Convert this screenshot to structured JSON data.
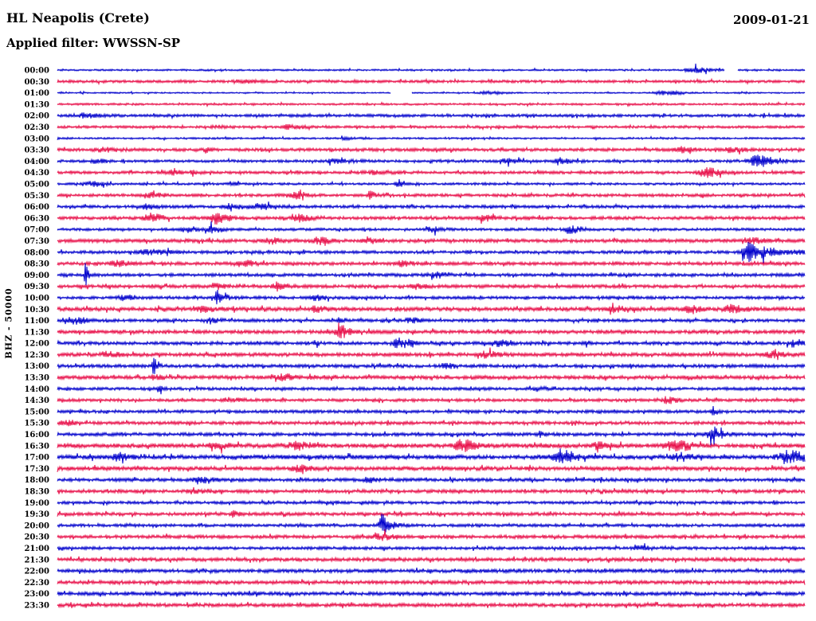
{
  "header": {
    "station": "HL Neapolis (Crete)",
    "date": "2009-01-21",
    "filter": "Applied filter: WWSSN-SP"
  },
  "y_axis_label": "BHZ - 50000",
  "colors": {
    "trace_blue": "#0000cc",
    "trace_red": "#e8104a",
    "background": "#ffffff",
    "text": "#000000"
  },
  "chart_data": {
    "type": "helicorder",
    "title": "HL Neapolis (Crete)",
    "date": "2009-01-21",
    "filter": "WWSSN-SP",
    "channel_and_scale": "BHZ - 50000",
    "minutes_per_row": 30,
    "first_row_time": "00:00",
    "last_row_time": "23:30",
    "row_count": 48,
    "legend_position": "none",
    "grid": false,
    "events_format": "[position_fraction_of_row, peak_amplitude_px, width_fraction_of_row]",
    "gaps_format": "[start_fraction, end_fraction]",
    "rows": [
      {
        "time": "00:00",
        "color": "blue",
        "noise": 1.1,
        "events": [
          [
            0.85,
            3.5,
            0.015
          ]
        ],
        "gaps": [
          [
            0.893,
            0.91
          ]
        ]
      },
      {
        "time": "00:30",
        "color": "red",
        "noise": 1.7,
        "events": [
          [
            0.245,
            1.5,
            0.02
          ]
        ],
        "gaps": []
      },
      {
        "time": "01:00",
        "color": "blue",
        "noise": 0.9,
        "events": [
          [
            0.575,
            1.8,
            0.015
          ],
          [
            0.81,
            2.2,
            0.02
          ]
        ],
        "gaps": [
          [
            0.446,
            0.474
          ]
        ]
      },
      {
        "time": "01:30",
        "color": "red",
        "noise": 1.3,
        "events": [],
        "gaps": []
      },
      {
        "time": "02:00",
        "color": "blue",
        "noise": 1.8,
        "events": [
          [
            0.035,
            2.2,
            0.015
          ]
        ],
        "gaps": []
      },
      {
        "time": "02:30",
        "color": "red",
        "noise": 1.6,
        "events": [
          [
            0.213,
            1.5,
            0.01
          ],
          [
            0.31,
            2.8,
            0.012
          ]
        ],
        "gaps": []
      },
      {
        "time": "03:00",
        "color": "blue",
        "noise": 1.2,
        "events": [
          [
            0.384,
            1.5,
            0.01
          ]
        ],
        "gaps": []
      },
      {
        "time": "03:30",
        "color": "red",
        "noise": 2.0,
        "events": [
          [
            0.06,
            2.0,
            0.015
          ],
          [
            0.198,
            3.5,
            0.004
          ],
          [
            0.835,
            2.8,
            0.012
          ],
          [
            0.9,
            2.8,
            0.012
          ]
        ],
        "gaps": []
      },
      {
        "time": "04:00",
        "color": "blue",
        "noise": 1.7,
        "events": [
          [
            0.051,
            2.2,
            0.01
          ],
          [
            0.37,
            1.8,
            0.02
          ],
          [
            0.6,
            2.5,
            0.012
          ],
          [
            0.672,
            2.5,
            0.012
          ],
          [
            0.936,
            6.5,
            0.018
          ]
        ],
        "gaps": []
      },
      {
        "time": "04:30",
        "color": "red",
        "noise": 1.8,
        "events": [
          [
            0.149,
            3.0,
            0.01
          ],
          [
            0.181,
            3.5,
            0.005
          ],
          [
            0.42,
            1.8,
            0.02
          ],
          [
            0.866,
            5.5,
            0.013
          ]
        ],
        "gaps": []
      },
      {
        "time": "05:00",
        "color": "blue",
        "noise": 1.5,
        "events": [
          [
            0.046,
            3.0,
            0.012
          ],
          [
            0.231,
            2.5,
            0.006
          ],
          [
            0.455,
            5.0,
            0.004
          ]
        ],
        "gaps": []
      },
      {
        "time": "05:30",
        "color": "red",
        "noise": 1.9,
        "events": [
          [
            0.125,
            2.5,
            0.012
          ],
          [
            0.318,
            4.0,
            0.01
          ],
          [
            0.418,
            4.5,
            0.005
          ]
        ],
        "gaps": []
      },
      {
        "time": "06:00",
        "color": "blue",
        "noise": 1.9,
        "events": [
          [
            0.12,
            2.5,
            0.01
          ],
          [
            0.23,
            3.0,
            0.014
          ],
          [
            0.27,
            3.0,
            0.012
          ]
        ],
        "gaps": []
      },
      {
        "time": "06:30",
        "color": "red",
        "noise": 2.1,
        "events": [
          [
            0.123,
            5.5,
            0.011
          ],
          [
            0.21,
            6.5,
            0.012
          ],
          [
            0.322,
            3.5,
            0.012
          ],
          [
            0.57,
            3.0,
            0.012
          ]
        ],
        "gaps": []
      },
      {
        "time": "07:00",
        "color": "blue",
        "noise": 1.7,
        "events": [
          [
            0.17,
            2.5,
            0.01
          ],
          [
            0.206,
            4.5,
            0.011
          ],
          [
            0.5,
            3.0,
            0.01
          ],
          [
            0.685,
            4.5,
            0.012
          ]
        ],
        "gaps": []
      },
      {
        "time": "07:30",
        "color": "red",
        "noise": 2.2,
        "events": [
          [
            0.285,
            3.5,
            0.011
          ],
          [
            0.348,
            4.0,
            0.011
          ],
          [
            0.416,
            3.0,
            0.01
          ],
          [
            0.925,
            3.8,
            0.012
          ]
        ],
        "gaps": []
      },
      {
        "time": "08:00",
        "color": "blue",
        "noise": 1.9,
        "events": [
          [
            0.12,
            2.5,
            0.02
          ],
          [
            0.924,
            12.0,
            0.012
          ],
          [
            0.95,
            3.5,
            0.03
          ]
        ],
        "gaps": []
      },
      {
        "time": "08:30",
        "color": "red",
        "noise": 2.1,
        "events": [
          [
            0.078,
            3.0,
            0.012
          ],
          [
            0.245,
            4.0,
            0.012
          ],
          [
            0.46,
            2.8,
            0.01
          ]
        ],
        "gaps": []
      },
      {
        "time": "09:00",
        "color": "blue",
        "noise": 2.0,
        "events": [
          [
            0.037,
            14.0,
            0.0028
          ],
          [
            0.504,
            3.5,
            0.01
          ]
        ],
        "gaps": []
      },
      {
        "time": "09:30",
        "color": "red",
        "noise": 2.1,
        "events": [
          [
            0.21,
            2.8,
            0.01
          ],
          [
            0.294,
            4.5,
            0.01
          ],
          [
            0.48,
            3.0,
            0.008
          ]
        ],
        "gaps": []
      },
      {
        "time": "10:00",
        "color": "blue",
        "noise": 1.9,
        "events": [
          [
            0.089,
            3.0,
            0.012
          ],
          [
            0.213,
            6.5,
            0.004
          ],
          [
            0.218,
            3.0,
            0.012
          ],
          [
            0.345,
            2.5,
            0.01
          ]
        ],
        "gaps": []
      },
      {
        "time": "10:30",
        "color": "red",
        "noise": 2.5,
        "events": [
          [
            0.193,
            3.0,
            0.01
          ],
          [
            0.345,
            2.8,
            0.01
          ],
          [
            0.745,
            3.2,
            0.012
          ],
          [
            0.845,
            3.2,
            0.012
          ],
          [
            0.9,
            4.0,
            0.012
          ]
        ],
        "gaps": []
      },
      {
        "time": "11:00",
        "color": "blue",
        "noise": 1.9,
        "events": [
          [
            0.02,
            4.0,
            0.013
          ],
          [
            0.203,
            3.0,
            0.01
          ],
          [
            0.375,
            2.5,
            0.008
          ],
          [
            0.472,
            3.2,
            0.01
          ]
        ],
        "gaps": []
      },
      {
        "time": "11:30",
        "color": "red",
        "noise": 2.3,
        "events": [
          [
            0.379,
            5.0,
            0.006
          ],
          [
            0.376,
            3.5,
            0.012
          ]
        ],
        "gaps": []
      },
      {
        "time": "12:00",
        "color": "blue",
        "noise": 2.1,
        "events": [
          [
            0.345,
            5.5,
            0.003
          ],
          [
            0.456,
            5.5,
            0.013
          ],
          [
            0.59,
            3.2,
            0.01
          ],
          [
            0.707,
            5.5,
            0.003
          ],
          [
            0.985,
            4.0,
            0.012
          ]
        ],
        "gaps": []
      },
      {
        "time": "12:30",
        "color": "red",
        "noise": 2.3,
        "events": [
          [
            0.065,
            3.2,
            0.012
          ],
          [
            0.57,
            3.2,
            0.014
          ],
          [
            0.955,
            3.2,
            0.012
          ]
        ],
        "gaps": []
      },
      {
        "time": "13:00",
        "color": "blue",
        "noise": 2.1,
        "events": [
          [
            0.129,
            11.0,
            0.004
          ],
          [
            0.52,
            2.8,
            0.01
          ]
        ],
        "gaps": []
      },
      {
        "time": "13:30",
        "color": "red",
        "noise": 2.3,
        "events": [
          [
            0.13,
            2.8,
            0.01
          ],
          [
            0.3,
            3.2,
            0.015
          ]
        ],
        "gaps": []
      },
      {
        "time": "14:00",
        "color": "blue",
        "noise": 1.9,
        "events": [
          [
            0.135,
            2.8,
            0.006
          ],
          [
            0.64,
            2.2,
            0.01
          ]
        ],
        "gaps": []
      },
      {
        "time": "14:30",
        "color": "red",
        "noise": 1.9,
        "events": [
          [
            0.23,
            2.5,
            0.012
          ],
          [
            0.815,
            3.5,
            0.01
          ]
        ],
        "gaps": []
      },
      {
        "time": "15:00",
        "color": "blue",
        "noise": 1.9,
        "events": [
          [
            0.877,
            6.5,
            0.0035
          ]
        ],
        "gaps": []
      },
      {
        "time": "15:30",
        "color": "red",
        "noise": 2.1,
        "events": [
          [
            0.01,
            3.0,
            0.01
          ]
        ],
        "gaps": []
      },
      {
        "time": "16:00",
        "color": "blue",
        "noise": 2.1,
        "events": [
          [
            0.646,
            3.5,
            0.004
          ],
          [
            0.875,
            6.0,
            0.012
          ],
          [
            0.877,
            8.0,
            0.003
          ]
        ],
        "gaps": []
      },
      {
        "time": "16:30",
        "color": "red",
        "noise": 2.7,
        "events": [
          [
            0.21,
            3.2,
            0.012
          ],
          [
            0.32,
            3.8,
            0.014
          ],
          [
            0.54,
            6.5,
            0.015
          ],
          [
            0.72,
            3.5,
            0.012
          ],
          [
            0.825,
            6.5,
            0.015
          ]
        ],
        "gaps": []
      },
      {
        "time": "17:00",
        "color": "blue",
        "noise": 2.7,
        "events": [
          [
            0.08,
            4.5,
            0.01
          ],
          [
            0.67,
            8.5,
            0.015
          ],
          [
            0.83,
            4.0,
            0.012
          ],
          [
            0.975,
            7.0,
            0.018
          ]
        ],
        "gaps": []
      },
      {
        "time": "17:30",
        "color": "red",
        "noise": 2.5,
        "events": [
          [
            0.32,
            3.0,
            0.012
          ]
        ],
        "gaps": []
      },
      {
        "time": "18:00",
        "color": "blue",
        "noise": 2.1,
        "events": [
          [
            0.19,
            3.0,
            0.012
          ],
          [
            0.416,
            2.5,
            0.01
          ]
        ],
        "gaps": []
      },
      {
        "time": "18:30",
        "color": "red",
        "noise": 2.1,
        "events": [
          [
            0.18,
            2.5,
            0.012
          ]
        ],
        "gaps": []
      },
      {
        "time": "19:00",
        "color": "blue",
        "noise": 1.9,
        "events": [],
        "gaps": []
      },
      {
        "time": "19:30",
        "color": "red",
        "noise": 2.1,
        "events": [
          [
            0.235,
            2.8,
            0.005
          ]
        ],
        "gaps": []
      },
      {
        "time": "20:00",
        "color": "blue",
        "noise": 1.9,
        "events": [
          [
            0.433,
            10.0,
            0.004
          ],
          [
            0.437,
            4.5,
            0.012
          ]
        ],
        "gaps": []
      },
      {
        "time": "20:30",
        "color": "red",
        "noise": 2.1,
        "events": [
          [
            0.428,
            4.0,
            0.012
          ]
        ],
        "gaps": []
      },
      {
        "time": "21:00",
        "color": "blue",
        "noise": 1.9,
        "events": [
          [
            0.78,
            2.8,
            0.012
          ]
        ],
        "gaps": []
      },
      {
        "time": "21:30",
        "color": "red",
        "noise": 2.3,
        "events": [],
        "gaps": []
      },
      {
        "time": "22:00",
        "color": "blue",
        "noise": 2.3,
        "events": [],
        "gaps": []
      },
      {
        "time": "22:30",
        "color": "red",
        "noise": 2.3,
        "events": [],
        "gaps": []
      },
      {
        "time": "23:00",
        "color": "blue",
        "noise": 2.3,
        "events": [],
        "gaps": []
      },
      {
        "time": "23:30",
        "color": "red",
        "noise": 2.3,
        "events": [],
        "gaps": []
      }
    ]
  }
}
